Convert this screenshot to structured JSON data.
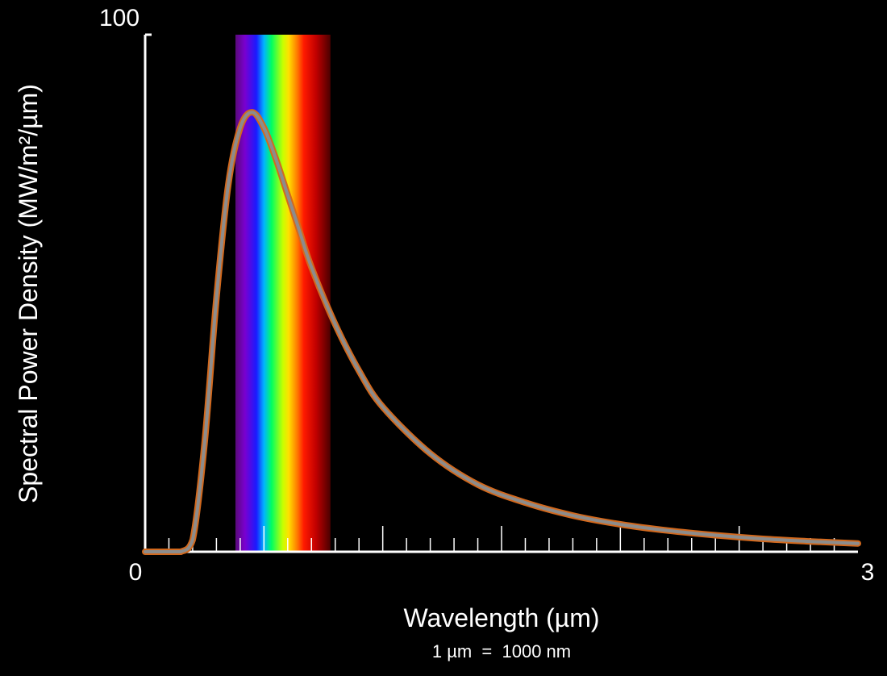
{
  "chart_data": {
    "type": "line",
    "title": "",
    "xlabel": "Wavelength (µm)",
    "xlabel_note": "1 µm  =  1000 nm",
    "ylabel": "Spectral Power Density (MW/m²/µm)",
    "xlim": [
      0,
      3
    ],
    "ylim": [
      0,
      100
    ],
    "x_tick_labels": [
      "0",
      "3"
    ],
    "y_tick_labels": [
      "100"
    ],
    "minor_tick_step": 0.1,
    "major_tick_step": 0.5,
    "grid": false,
    "legend": "none",
    "visible_band": {
      "start": 0.38,
      "end": 0.78
    },
    "series": [
      {
        "x": [
          0,
          0.1,
          0.15,
          0.2,
          0.25,
          0.3,
          0.35,
          0.4,
          0.45,
          0.5,
          0.55,
          0.6,
          0.65,
          0.7,
          0.8,
          0.9,
          1.0,
          1.2,
          1.4,
          1.6,
          1.8,
          2.0,
          2.2,
          2.4,
          2.6,
          2.8,
          3.0
        ],
        "y": [
          0,
          0,
          0,
          2.3,
          21,
          49,
          71,
          82,
          85,
          82,
          76,
          69,
          62,
          55,
          44,
          35,
          28,
          19,
          13,
          9.5,
          7,
          5.3,
          4.1,
          3.2,
          2.5,
          2.0,
          1.6
        ]
      }
    ],
    "colors": {
      "background": "#000000",
      "axis": "#ffffff",
      "curve_outer": "#d2691e",
      "curve_inner": "#8c8c8c"
    }
  }
}
